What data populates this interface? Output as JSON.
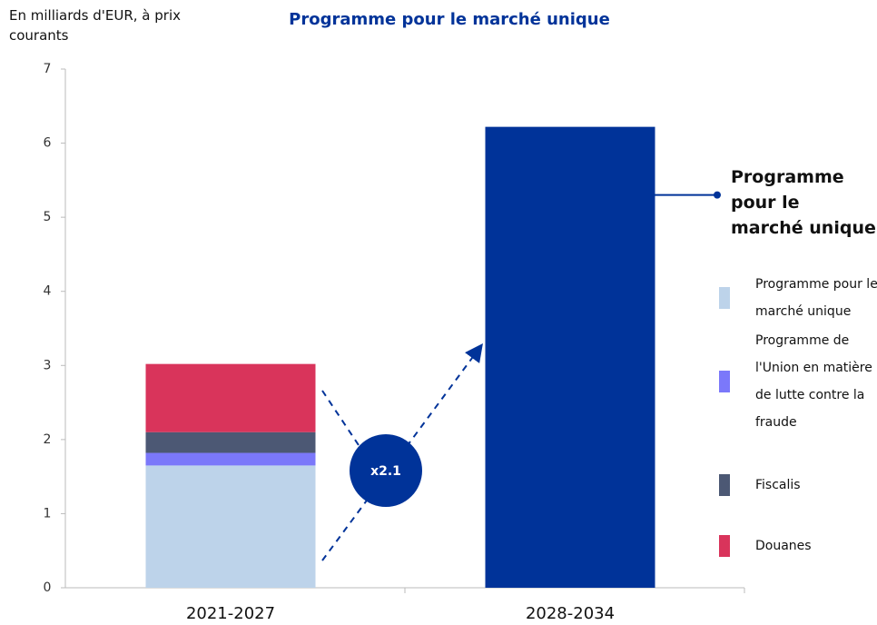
{
  "chart_data": {
    "type": "stacked_bar",
    "title": "Programme pour le marché unique",
    "y_label": "En milliards d'EUR, à prix courants",
    "annotation": "x2.1",
    "categories": [
      "2021-2027",
      "2028-2034"
    ],
    "series": [
      {
        "name": "Programme pour le marché unique",
        "color": "#bdd3ea",
        "values": [
          1.65,
          null
        ]
      },
      {
        "name": "Programme de l'Union en matière de lutte contre la fraude",
        "color": "#7b78fa",
        "values": [
          0.17,
          null
        ]
      },
      {
        "name": "Fiscalis",
        "color": "#4c5874",
        "values": [
          0.28,
          null
        ]
      },
      {
        "name": "Douanes",
        "color": "#d9345b",
        "values": [
          0.92,
          null
        ]
      },
      {
        "name": "Programme pour le marché unique",
        "color": "#003399",
        "values": [
          null,
          6.22
        ]
      }
    ],
    "ylim": [
      0,
      7
    ],
    "yticks": [
      0,
      1,
      2,
      3,
      4,
      5,
      6,
      7
    ]
  }
}
